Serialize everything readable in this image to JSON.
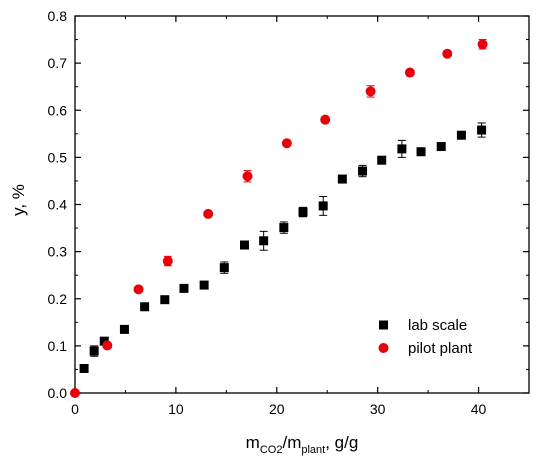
{
  "chart_data": {
    "type": "scatter",
    "title": "",
    "xlabel": {
      "base": "m",
      "sub1": "CO2",
      "mid": "/m",
      "sub2": "plant",
      "tail": ", g/g"
    },
    "ylabel": "y, %",
    "xlim": [
      0,
      45
    ],
    "ylim": [
      0,
      0.8
    ],
    "x_ticks": [
      0,
      10,
      20,
      30,
      40
    ],
    "y_ticks": [
      0.0,
      0.1,
      0.2,
      0.3,
      0.4,
      0.5,
      0.6,
      0.7,
      0.8
    ],
    "x_tick_labels": [
      "0",
      "10",
      "20",
      "30",
      "40"
    ],
    "y_tick_labels": [
      "0.0",
      "0.1",
      "0.2",
      "0.3",
      "0.4",
      "0.5",
      "0.6",
      "0.7",
      "0.8"
    ],
    "legend_position": "lower-right",
    "series": [
      {
        "name": "lab scale",
        "marker": "square",
        "color": "#000000",
        "points": [
          {
            "x": 0.9,
            "y": 0.052,
            "err": 0
          },
          {
            "x": 1.9,
            "y": 0.089,
            "err": 0.011
          },
          {
            "x": 2.9,
            "y": 0.11,
            "err": 0
          },
          {
            "x": 4.9,
            "y": 0.135,
            "err": 0
          },
          {
            "x": 6.9,
            "y": 0.183,
            "err": 0
          },
          {
            "x": 8.9,
            "y": 0.198,
            "err": 0
          },
          {
            "x": 10.8,
            "y": 0.222,
            "err": 0
          },
          {
            "x": 12.8,
            "y": 0.229,
            "err": 0
          },
          {
            "x": 14.8,
            "y": 0.266,
            "err": 0.012
          },
          {
            "x": 16.8,
            "y": 0.314,
            "err": 0.008
          },
          {
            "x": 18.7,
            "y": 0.323,
            "err": 0.02
          },
          {
            "x": 20.7,
            "y": 0.351,
            "err": 0.012
          },
          {
            "x": 22.6,
            "y": 0.384,
            "err": 0.01
          },
          {
            "x": 24.6,
            "y": 0.397,
            "err": 0.02
          },
          {
            "x": 26.5,
            "y": 0.454,
            "err": 0
          },
          {
            "x": 28.5,
            "y": 0.471,
            "err": 0.012
          },
          {
            "x": 30.4,
            "y": 0.494,
            "err": 0
          },
          {
            "x": 32.4,
            "y": 0.518,
            "err": 0.018
          },
          {
            "x": 34.3,
            "y": 0.512,
            "err": 0
          },
          {
            "x": 36.3,
            "y": 0.523,
            "err": 0
          },
          {
            "x": 38.3,
            "y": 0.547,
            "err": 0.008
          },
          {
            "x": 40.3,
            "y": 0.558,
            "err": 0.015
          }
        ]
      },
      {
        "name": "pilot plant",
        "marker": "circle",
        "color": "#e8000b",
        "points": [
          {
            "x": 0.0,
            "y": 0.0,
            "err": 0
          },
          {
            "x": 3.2,
            "y": 0.101,
            "err": 0
          },
          {
            "x": 6.3,
            "y": 0.22,
            "err": 0
          },
          {
            "x": 9.2,
            "y": 0.28,
            "err": 0.01
          },
          {
            "x": 13.2,
            "y": 0.38,
            "err": 0
          },
          {
            "x": 17.1,
            "y": 0.46,
            "err": 0.012
          },
          {
            "x": 21.0,
            "y": 0.53,
            "err": 0
          },
          {
            "x": 24.8,
            "y": 0.58,
            "err": 0
          },
          {
            "x": 29.3,
            "y": 0.64,
            "err": 0.012
          },
          {
            "x": 33.2,
            "y": 0.68,
            "err": 0
          },
          {
            "x": 36.9,
            "y": 0.72,
            "err": 0
          },
          {
            "x": 40.4,
            "y": 0.74,
            "err": 0.01
          }
        ]
      }
    ]
  }
}
